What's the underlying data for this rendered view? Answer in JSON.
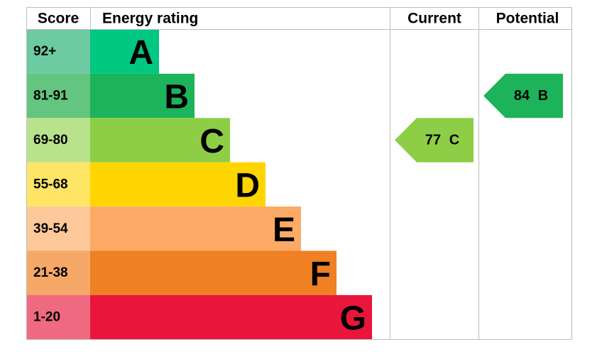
{
  "header": {
    "score": "Score",
    "energy_rating": "Energy rating",
    "current": "Current",
    "potential": "Potential"
  },
  "bands": [
    {
      "score": "92+",
      "letter": "A",
      "color": "#00c781",
      "score_color": "#6ecaa0"
    },
    {
      "score": "81-91",
      "letter": "B",
      "color": "#1db35a",
      "score_color": "#63c57f"
    },
    {
      "score": "69-80",
      "letter": "C",
      "color": "#8dce46",
      "score_color": "#b9e28d"
    },
    {
      "score": "55-68",
      "letter": "D",
      "color": "#ffd500",
      "score_color": "#ffe566"
    },
    {
      "score": "39-54",
      "letter": "E",
      "color": "#fcaa65",
      "score_color": "#fdc89a"
    },
    {
      "score": "21-38",
      "letter": "F",
      "color": "#ef8023",
      "score_color": "#f5a868"
    },
    {
      "score": "1-20",
      "letter": "G",
      "color": "#e9153b",
      "score_color": "#ef6a80"
    }
  ],
  "current": {
    "value": 77,
    "letter": "C"
  },
  "potential": {
    "value": 84,
    "letter": "B"
  }
}
